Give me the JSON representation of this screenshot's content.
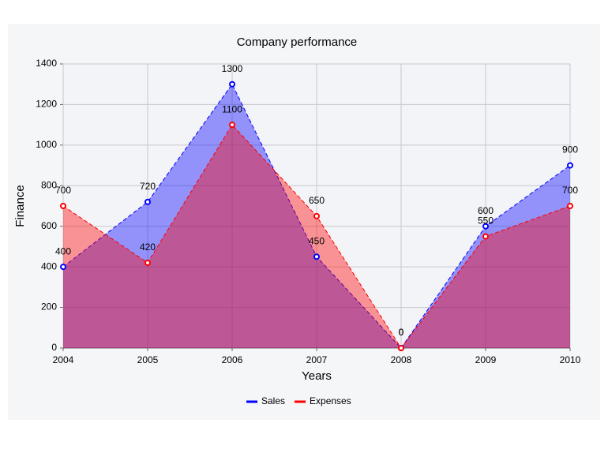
{
  "chart_data": {
    "type": "area",
    "title": "Company performance",
    "x_label": "Years",
    "y_label": "Finance",
    "x": [
      2004,
      2005,
      2006,
      2007,
      2008,
      2009,
      2010
    ],
    "series": [
      {
        "name": "Sales",
        "color": "#0000ff",
        "values": [
          400,
          720,
          1300,
          450,
          0,
          600,
          900
        ]
      },
      {
        "name": "Expenses",
        "color": "#ff0000",
        "values": [
          700,
          420,
          1100,
          650,
          0,
          550,
          700
        ]
      }
    ],
    "xlim": [
      2004,
      2010
    ],
    "xticks": [
      2004,
      2005,
      2006,
      2007,
      2008,
      2009,
      2010
    ],
    "ylim": [
      0,
      1400
    ],
    "yticks": [
      0,
      200,
      400,
      600,
      800,
      1000,
      1200,
      1400
    ],
    "grid": true,
    "legend": "bottom"
  }
}
